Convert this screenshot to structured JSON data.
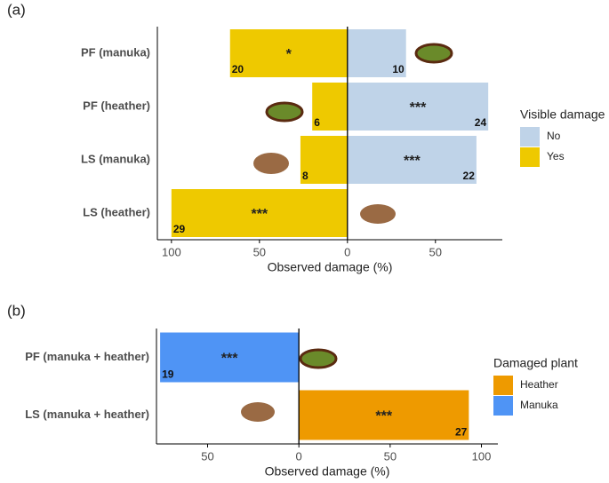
{
  "chart_data": [
    {
      "type": "bar",
      "orientation": "horizontal",
      "panel_label": "(a)",
      "categories": [
        "PF (manuka)",
        "PF (heather)",
        "LS (manuka)",
        "LS (heather)"
      ],
      "series": [
        {
          "name": "No",
          "color": "#bfd3e8",
          "values": [
            33.3,
            80,
            73.3,
            0
          ],
          "counts": [
            10,
            24,
            22,
            null
          ],
          "significance": [
            null,
            "***",
            "***",
            null
          ]
        },
        {
          "name": "Yes",
          "color": "#eec900",
          "values": [
            -66.7,
            -20,
            -26.7,
            -100
          ],
          "counts": [
            20,
            6,
            8,
            29
          ],
          "significance": [
            "*",
            null,
            null,
            "***"
          ]
        }
      ],
      "xlim": [
        -108,
        88
      ],
      "xticks": [
        {
          "value": -100,
          "label": "100"
        },
        {
          "value": -50,
          "label": "50"
        },
        0,
        50
      ],
      "x_label": "Observed damage (%)",
      "legend_title": "Visible damage"
    },
    {
      "type": "bar",
      "orientation": "horizontal",
      "panel_label": "(b)",
      "categories": [
        "PF (manuka + heather)",
        "LS (manuka + heather)"
      ],
      "series": [
        {
          "name": "Heather",
          "color": "#ee9a00",
          "values": [
            null,
            93.1
          ],
          "counts": [
            null,
            27
          ],
          "significance": [
            null,
            "***"
          ]
        },
        {
          "name": "Manuka",
          "color": "#4f94f5",
          "values": [
            -76,
            null
          ],
          "counts": [
            19,
            null
          ],
          "significance": [
            "***",
            null
          ]
        }
      ],
      "xlim": [
        -78,
        109
      ],
      "xticks": [
        {
          "value": -50,
          "label": "50"
        },
        0,
        50,
        100
      ],
      "x_label": "Observed damage (%)",
      "legend_title": "Damaged plant"
    }
  ]
}
